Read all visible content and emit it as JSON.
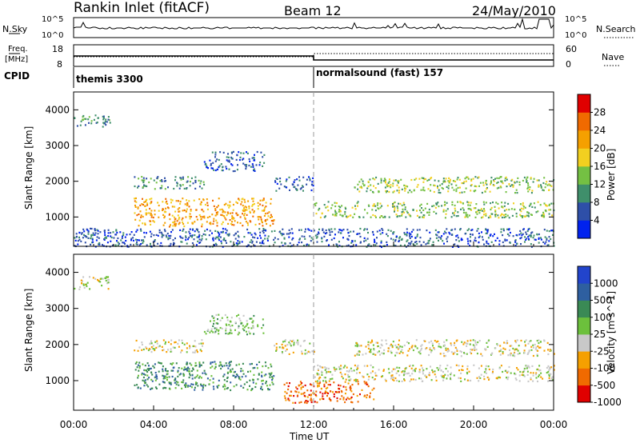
{
  "header": {
    "station": "Rankin Inlet (fitACF)",
    "beam": "Beam 12",
    "date": "24/May/2010"
  },
  "strip_labels": {
    "nsky": "N.Sky",
    "nsky_top": "10^5",
    "nsky_bottom": "10^0",
    "nsearch": "N.Search",
    "nsearch_top": "10^5",
    "nsearch_bottom": "10^0",
    "freq_line1": "Freq.",
    "freq_line2": "[MHz]",
    "freq_top": "18",
    "freq_bottom": "8",
    "nave": "Nave",
    "nave_top": "60",
    "nave_bottom": "0",
    "cpid": "CPID",
    "cpid_1": "themis 3300",
    "cpid_2": "normalsound (fast) 157"
  },
  "chart_data": [
    {
      "type": "heatmap",
      "panel": "power",
      "xlabel": "Time UT",
      "ylabel": "Slant Range [km]",
      "x_ticks": [
        "00:00",
        "04:00",
        "08:00",
        "12:00",
        "16:00",
        "20:00",
        "00:00"
      ],
      "y_ticks": [
        1000,
        2000,
        3000,
        4000
      ],
      "xlim_hours": [
        0,
        24
      ],
      "ylim_km": [
        180,
        4500
      ],
      "colorbar_label": "Power [dB]",
      "colorbar_ticks": [
        "4",
        "8",
        "12",
        "16",
        "20",
        "24",
        "28"
      ],
      "colorbar_colors": [
        "#0022ee",
        "#2e4fa8",
        "#3f8f6b",
        "#74c043",
        "#f2d020",
        "#f5a000",
        "#f06a00",
        "#e00000"
      ],
      "scatter_regions": [
        {
          "t0": 0.0,
          "t1": 1.8,
          "r0": 3550,
          "r1": 3900,
          "level": 2
        },
        {
          "t0": 3.0,
          "t1": 10.0,
          "r0": 750,
          "r1": 1550,
          "level": 5
        },
        {
          "t0": 6.5,
          "t1": 9.5,
          "r0": 2300,
          "r1": 2850,
          "level": 1
        },
        {
          "t0": 3.0,
          "t1": 6.5,
          "r0": 1800,
          "r1": 2150,
          "level": 2
        },
        {
          "t0": 10.0,
          "t1": 12.0,
          "r0": 1750,
          "r1": 2150,
          "level": 1
        },
        {
          "t0": 12.0,
          "t1": 24.0,
          "r0": 1000,
          "r1": 1450,
          "level": 3
        },
        {
          "t0": 14.0,
          "t1": 24.0,
          "r0": 1700,
          "r1": 2150,
          "level": 3
        },
        {
          "t0": 0.0,
          "t1": 24.0,
          "r0": 180,
          "r1": 700,
          "level": 1
        }
      ]
    },
    {
      "type": "heatmap",
      "panel": "velocity",
      "xlabel": "Time UT",
      "ylabel": "Slant Range [km]",
      "x_ticks": [
        "00:00",
        "04:00",
        "08:00",
        "12:00",
        "16:00",
        "20:00",
        "00:00"
      ],
      "y_ticks": [
        1000,
        2000,
        3000,
        4000
      ],
      "xlim_hours": [
        0,
        24
      ],
      "ylim_km": [
        180,
        4500
      ],
      "colorbar_label": "Velocity [m s^-1]",
      "colorbar_ticks": [
        "1000",
        "500",
        "100",
        "25",
        "-25",
        "-100",
        "-500",
        "-1000"
      ],
      "colorbar_colors": [
        "#2244cc",
        "#2e5fa0",
        "#3a8a55",
        "#6cc03c",
        "#c8c8c8",
        "#f5a000",
        "#f06a00",
        "#e00000"
      ],
      "scatter_regions": [
        {
          "t0": 0.0,
          "t1": 1.8,
          "r0": 3550,
          "r1": 3900,
          "level": 4
        },
        {
          "t0": 3.0,
          "t1": 10.0,
          "r0": 750,
          "r1": 1550,
          "level": 2
        },
        {
          "t0": 6.5,
          "t1": 9.5,
          "r0": 2300,
          "r1": 2850,
          "level": 3
        },
        {
          "t0": 3.0,
          "t1": 6.5,
          "r0": 1800,
          "r1": 2150,
          "level": 4
        },
        {
          "t0": 10.0,
          "t1": 12.0,
          "r0": 1750,
          "r1": 2150,
          "level": 4
        },
        {
          "t0": 12.0,
          "t1": 24.0,
          "r0": 1000,
          "r1": 1450,
          "level": 4
        },
        {
          "t0": 14.0,
          "t1": 24.0,
          "r0": 1700,
          "r1": 2150,
          "level": 4
        },
        {
          "t0": 10.5,
          "t1": 15.0,
          "r0": 400,
          "r1": 1000,
          "level": 6
        }
      ]
    }
  ]
}
